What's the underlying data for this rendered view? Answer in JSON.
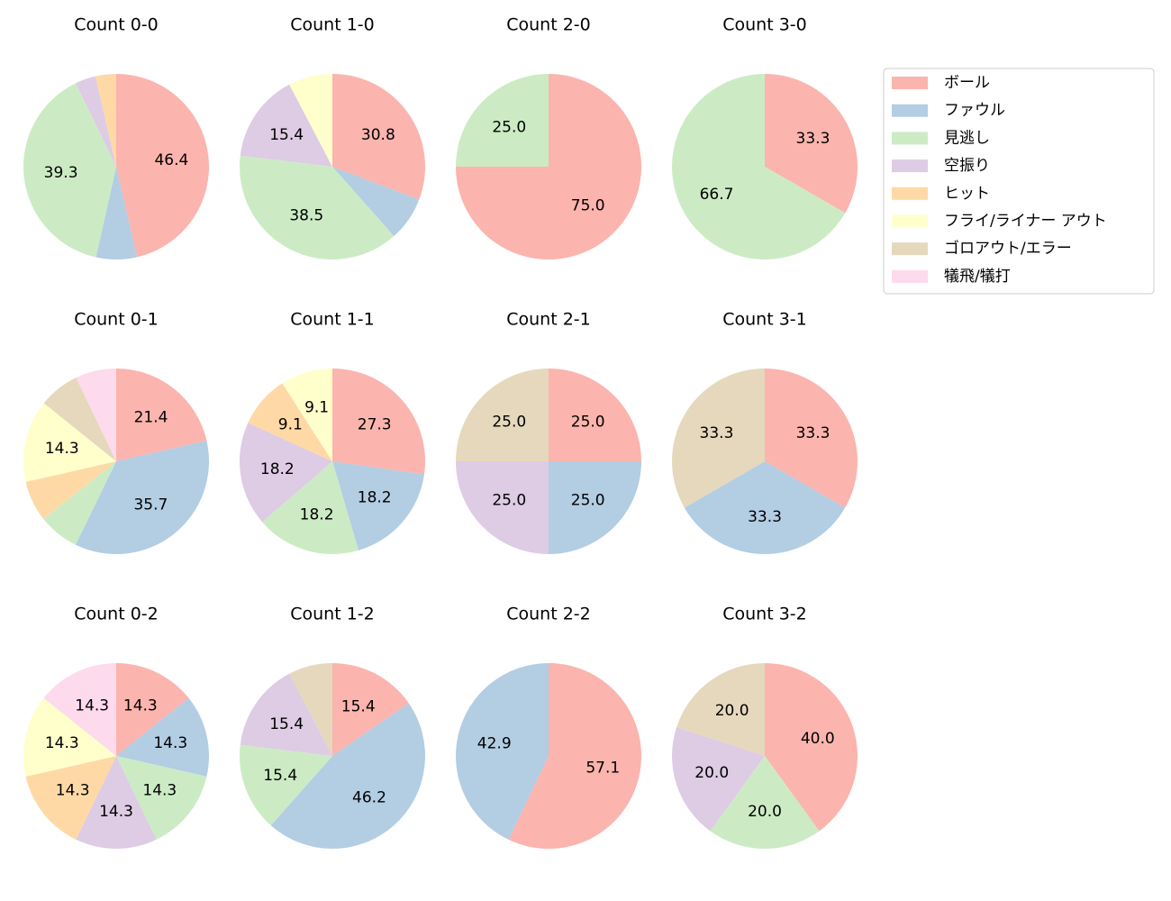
{
  "chart_data": [
    {
      "type": "pie",
      "title": "Count 0-0",
      "legend": "upper right",
      "categories": [
        "ボール",
        "ファウル",
        "見逃し",
        "空振り",
        "ヒット",
        "フライ/ライナー アウト",
        "ゴロアウト/エラー",
        "犠飛/犠打"
      ],
      "colors": [
        "#fbb4ae",
        "#b3cde3",
        "#ccebc5",
        "#decbe4",
        "#fed9a6",
        "#ffffcc",
        "#e5d8bd",
        "#fddaec"
      ],
      "values": [
        46.4,
        7.1,
        39.3,
        3.6,
        3.6,
        0,
        0,
        0
      ],
      "value_labels": [
        "46.4",
        null,
        "39.3",
        null,
        null,
        null,
        null,
        null
      ]
    },
    {
      "type": "pie",
      "title": "Count 1-0",
      "categories": [
        "ボール",
        "ファウル",
        "見逃し",
        "空振り",
        "ヒット",
        "フライ/ライナー アウト",
        "ゴロアウト/エラー",
        "犠飛/犠打"
      ],
      "colors": [
        "#fbb4ae",
        "#b3cde3",
        "#ccebc5",
        "#decbe4",
        "#fed9a6",
        "#ffffcc",
        "#e5d8bd",
        "#fddaec"
      ],
      "values": [
        30.8,
        7.7,
        38.5,
        15.4,
        0,
        7.7,
        0,
        0
      ],
      "value_labels": [
        "30.8",
        null,
        "38.5",
        "15.4",
        null,
        null,
        null,
        null
      ]
    },
    {
      "type": "pie",
      "title": "Count 2-0",
      "categories": [
        "ボール",
        "ファウル",
        "見逃し",
        "空振り",
        "ヒット",
        "フライ/ライナー アウト",
        "ゴロアウト/エラー",
        "犠飛/犠打"
      ],
      "colors": [
        "#fbb4ae",
        "#b3cde3",
        "#ccebc5",
        "#decbe4",
        "#fed9a6",
        "#ffffcc",
        "#e5d8bd",
        "#fddaec"
      ],
      "values": [
        75,
        0,
        25,
        0,
        0,
        0,
        0,
        0
      ],
      "value_labels": [
        "75.0",
        null,
        "25.0",
        null,
        null,
        null,
        null,
        null
      ]
    },
    {
      "type": "pie",
      "title": "Count 3-0",
      "categories": [
        "ボール",
        "ファウル",
        "見逃し",
        "空振り",
        "ヒット",
        "フライ/ライナー アウト",
        "ゴロアウト/エラー",
        "犠飛/犠打"
      ],
      "colors": [
        "#fbb4ae",
        "#b3cde3",
        "#ccebc5",
        "#decbe4",
        "#fed9a6",
        "#ffffcc",
        "#e5d8bd",
        "#fddaec"
      ],
      "values": [
        33.3,
        0,
        66.7,
        0,
        0,
        0,
        0,
        0
      ],
      "value_labels": [
        "33.3",
        null,
        "66.7",
        null,
        null,
        null,
        null,
        null
      ]
    },
    {
      "type": "pie",
      "title": "Count 0-1",
      "categories": [
        "ボール",
        "ファウル",
        "見逃し",
        "空振り",
        "ヒット",
        "フライ/ライナー アウト",
        "ゴロアウト/エラー",
        "犠飛/犠打"
      ],
      "colors": [
        "#fbb4ae",
        "#b3cde3",
        "#ccebc5",
        "#decbe4",
        "#fed9a6",
        "#ffffcc",
        "#e5d8bd",
        "#fddaec"
      ],
      "values": [
        21.4,
        35.7,
        7.1,
        0,
        7.1,
        14.3,
        7.1,
        7.1
      ],
      "value_labels": [
        "21.4",
        "35.7",
        null,
        null,
        null,
        "14.3",
        null,
        null
      ]
    },
    {
      "type": "pie",
      "title": "Count 1-1",
      "categories": [
        "ボール",
        "ファウル",
        "見逃し",
        "空振り",
        "ヒット",
        "フライ/ライナー アウト",
        "ゴロアウト/エラー",
        "犠飛/犠打"
      ],
      "colors": [
        "#fbb4ae",
        "#b3cde3",
        "#ccebc5",
        "#decbe4",
        "#fed9a6",
        "#ffffcc",
        "#e5d8bd",
        "#fddaec"
      ],
      "values": [
        27.3,
        18.2,
        18.2,
        18.2,
        9.1,
        9.1,
        0,
        0
      ],
      "value_labels": [
        "27.3",
        "18.2",
        "18.2",
        "18.2",
        "9.1",
        "9.1",
        null,
        null
      ]
    },
    {
      "type": "pie",
      "title": "Count 2-1",
      "categories": [
        "ボール",
        "ファウル",
        "見逃し",
        "空振り",
        "ヒット",
        "フライ/ライナー アウト",
        "ゴロアウト/エラー",
        "犠飛/犠打"
      ],
      "colors": [
        "#fbb4ae",
        "#b3cde3",
        "#ccebc5",
        "#decbe4",
        "#fed9a6",
        "#ffffcc",
        "#e5d8bd",
        "#fddaec"
      ],
      "values": [
        25,
        25,
        0,
        25,
        0,
        0,
        25,
        0
      ],
      "value_labels": [
        "25.0",
        "25.0",
        null,
        "25.0",
        null,
        null,
        "25.0",
        null
      ]
    },
    {
      "type": "pie",
      "title": "Count 3-1",
      "categories": [
        "ボール",
        "ファウル",
        "見逃し",
        "空振り",
        "ヒット",
        "フライ/ライナー アウト",
        "ゴロアウト/エラー",
        "犠飛/犠打"
      ],
      "colors": [
        "#fbb4ae",
        "#b3cde3",
        "#ccebc5",
        "#decbe4",
        "#fed9a6",
        "#ffffcc",
        "#e5d8bd",
        "#fddaec"
      ],
      "values": [
        33.3,
        33.3,
        0,
        0,
        0,
        0,
        33.3,
        0
      ],
      "value_labels": [
        "33.3",
        "33.3",
        null,
        null,
        null,
        null,
        "33.3",
        null
      ]
    },
    {
      "type": "pie",
      "title": "Count 0-2",
      "categories": [
        "ボール",
        "ファウル",
        "見逃し",
        "空振り",
        "ヒット",
        "フライ/ライナー アウト",
        "ゴロアウト/エラー",
        "犠飛/犠打"
      ],
      "colors": [
        "#fbb4ae",
        "#b3cde3",
        "#ccebc5",
        "#decbe4",
        "#fed9a6",
        "#ffffcc",
        "#e5d8bd",
        "#fddaec"
      ],
      "values": [
        14.3,
        14.3,
        14.3,
        14.3,
        14.3,
        14.3,
        0,
        14.3
      ],
      "value_labels": [
        "14.3",
        "14.3",
        "14.3",
        "14.3",
        "14.3",
        "14.3",
        null,
        "14.3"
      ]
    },
    {
      "type": "pie",
      "title": "Count 1-2",
      "categories": [
        "ボール",
        "ファウル",
        "見逃し",
        "空振り",
        "ヒット",
        "フライ/ライナー アウト",
        "ゴロアウト/エラー",
        "犠飛/犠打"
      ],
      "colors": [
        "#fbb4ae",
        "#b3cde3",
        "#ccebc5",
        "#decbe4",
        "#fed9a6",
        "#ffffcc",
        "#e5d8bd",
        "#fddaec"
      ],
      "values": [
        15.4,
        46.2,
        15.4,
        15.4,
        0,
        0,
        7.7,
        0
      ],
      "value_labels": [
        "15.4",
        "46.2",
        "15.4",
        "15.4",
        null,
        null,
        null,
        null
      ]
    },
    {
      "type": "pie",
      "title": "Count 2-2",
      "categories": [
        "ボール",
        "ファウル",
        "見逃し",
        "空振り",
        "ヒット",
        "フライ/ライナー アウト",
        "ゴロアウト/エラー",
        "犠飛/犠打"
      ],
      "colors": [
        "#fbb4ae",
        "#b3cde3",
        "#ccebc5",
        "#decbe4",
        "#fed9a6",
        "#ffffcc",
        "#e5d8bd",
        "#fddaec"
      ],
      "values": [
        57.1,
        42.9,
        0,
        0,
        0,
        0,
        0,
        0
      ],
      "value_labels": [
        "57.1",
        "42.9",
        null,
        null,
        null,
        null,
        null,
        null
      ]
    },
    {
      "type": "pie",
      "title": "Count 3-2",
      "categories": [
        "ボール",
        "ファウル",
        "見逃し",
        "空振り",
        "ヒット",
        "フライ/ライナー アウト",
        "ゴロアウト/エラー",
        "犠飛/犠打"
      ],
      "colors": [
        "#fbb4ae",
        "#b3cde3",
        "#ccebc5",
        "#decbe4",
        "#fed9a6",
        "#ffffcc",
        "#e5d8bd",
        "#fddaec"
      ],
      "values": [
        40,
        0,
        20,
        20,
        0,
        0,
        20,
        0
      ],
      "value_labels": [
        "40.0",
        null,
        "20.0",
        "20.0",
        null,
        null,
        "20.0",
        null
      ]
    }
  ]
}
